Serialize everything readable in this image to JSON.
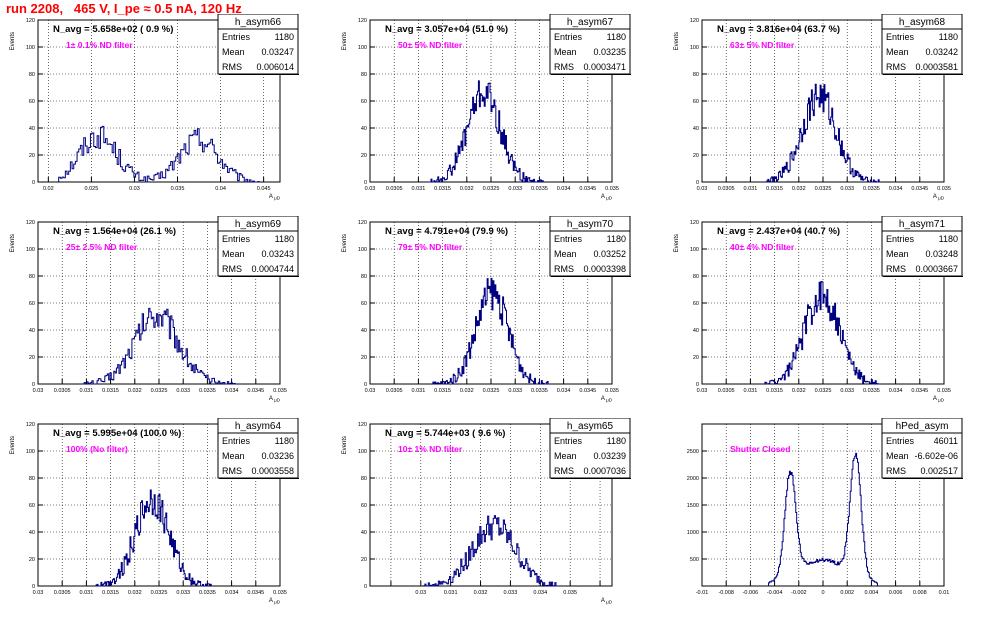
{
  "run_title": "run 2208,   465 V, I_pe ≈ 0.5 nA, 120 Hz",
  "colors": {
    "run_title": "#ff0000",
    "histogram_line": "#000080",
    "filter_label": "#ff00ff",
    "frame": "#000000",
    "grid": "#000000"
  },
  "chart_data": [
    {
      "type": "histogram",
      "title": "h_asym66",
      "ylabel": "Events",
      "xlabel": "A_{μD}",
      "xlim": [
        0.0188,
        0.0469
      ],
      "ylim": [
        0,
        120
      ],
      "xticks": [
        0.02,
        0.025,
        0.03,
        0.035,
        0.04,
        0.045
      ],
      "xtick_labels": [
        "0.02",
        "0.025",
        "0.03",
        "0.035",
        "0.04",
        "0.045"
      ],
      "yticks": [
        0,
        20,
        40,
        60,
        80,
        100,
        120
      ],
      "stats": {
        "Entries": "1180",
        "Mean": "0.03247",
        "RMS": "0.006014"
      },
      "n_avg": "N_avg = 5.658e+02 ( 0.9 %)",
      "filter": "1± 0.1% ND filter",
      "dist": [
        {
          "mu": 0.0258,
          "sigma": 0.0022,
          "amp": 34
        },
        {
          "mu": 0.0375,
          "sigma": 0.0022,
          "amp": 32
        }
      ],
      "range": [
        0.0212,
        0.0445
      ],
      "bins": 120
    },
    {
      "type": "histogram",
      "title": "h_asym67",
      "ylabel": "Events",
      "xlabel": "A_{μD}",
      "xlim": [
        0.03,
        0.035
      ],
      "ylim": [
        0,
        120
      ],
      "xticks": [
        0.03,
        0.0305,
        0.031,
        0.0315,
        0.032,
        0.0325,
        0.033,
        0.0335,
        0.034,
        0.0345,
        0.035
      ],
      "xtick_labels": [
        "0.03",
        "0.0305",
        "0.031",
        "0.0315",
        "0.032",
        "0.0325",
        "0.033",
        "0.0335",
        "0.034",
        "0.0345",
        "0.035"
      ],
      "yticks": [
        0,
        20,
        40,
        60,
        80,
        100,
        120
      ],
      "stats": {
        "Entries": "1180",
        "Mean": "0.03235",
        "RMS": "0.0003471"
      },
      "n_avg": "N_avg = 3.057e+04 (51.0 %)",
      "filter": "50± 5% ND filter",
      "dist": [
        {
          "mu": 0.03235,
          "sigma": 0.00034,
          "amp": 66
        }
      ],
      "range": [
        0.0312,
        0.0336
      ],
      "bins": 120
    },
    {
      "type": "histogram",
      "title": "h_asym68",
      "ylabel": "Events",
      "xlabel": "A_{μD}",
      "xlim": [
        0.03,
        0.035
      ],
      "ylim": [
        0,
        120
      ],
      "xticks": [
        0.03,
        0.0305,
        0.031,
        0.0315,
        0.032,
        0.0325,
        0.033,
        0.0335,
        0.034,
        0.0345,
        0.035
      ],
      "xtick_labels": [
        "0.03",
        "0.0305",
        "0.031",
        "0.0315",
        "0.032",
        "0.0325",
        "0.033",
        "0.0335",
        "0.034",
        "0.0345",
        "0.035"
      ],
      "yticks": [
        0,
        20,
        40,
        60,
        80,
        100,
        120
      ],
      "stats": {
        "Entries": "1180",
        "Mean": "0.03242",
        "RMS": "0.0003581"
      },
      "n_avg": "N_avg = 3.816e+04 (63.7 %)",
      "filter": "63± 5% ND filter",
      "dist": [
        {
          "mu": 0.03242,
          "sigma": 0.00035,
          "amp": 64
        }
      ],
      "range": [
        0.0313,
        0.0337
      ],
      "bins": 120
    },
    {
      "type": "histogram",
      "title": "h_asym69",
      "ylabel": "Events",
      "xlabel": "A_{μD}",
      "xlim": [
        0.03,
        0.035
      ],
      "ylim": [
        0,
        120
      ],
      "xticks": [
        0.03,
        0.0305,
        0.031,
        0.0315,
        0.032,
        0.0325,
        0.033,
        0.0335,
        0.034,
        0.0345,
        0.035
      ],
      "xtick_labels": [
        "0.03",
        "0.0305",
        "0.031",
        "0.0315",
        "0.032",
        "0.0325",
        "0.033",
        "0.0335",
        "0.034",
        "0.0345",
        "0.035"
      ],
      "yticks": [
        0,
        20,
        40,
        60,
        80,
        100,
        120
      ],
      "stats": {
        "Entries": "1180",
        "Mean": "0.03243",
        "RMS": "0.0004744"
      },
      "n_avg": "N_avg = 1.564e+04 (26.1 %)",
      "filter": "25± 2.5% ND filter",
      "dist": [
        {
          "mu": 0.03245,
          "sigma": 0.00045,
          "amp": 52
        }
      ],
      "range": [
        0.0309,
        0.0341
      ],
      "bins": 120
    },
    {
      "type": "histogram",
      "title": "h_asym70",
      "ylabel": "Events",
      "xlabel": "A_{μD}",
      "xlim": [
        0.03,
        0.035
      ],
      "ylim": [
        0,
        120
      ],
      "xticks": [
        0.03,
        0.0305,
        0.031,
        0.0315,
        0.032,
        0.0325,
        0.033,
        0.0335,
        0.034,
        0.0345,
        0.035
      ],
      "xtick_labels": [
        "0.03",
        "0.0305",
        "0.031",
        "0.0315",
        "0.032",
        "0.0325",
        "0.033",
        "0.0335",
        "0.034",
        "0.0345",
        "0.035"
      ],
      "yticks": [
        0,
        20,
        40,
        60,
        80,
        100,
        120
      ],
      "stats": {
        "Entries": "1180",
        "Mean": "0.03252",
        "RMS": "0.0003398"
      },
      "n_avg": "N_avg = 4.791e+04 (79.9 %)",
      "filter": "79± 5% ND filter",
      "dist": [
        {
          "mu": 0.03252,
          "sigma": 0.00033,
          "amp": 68
        }
      ],
      "range": [
        0.0313,
        0.0337
      ],
      "bins": 120
    },
    {
      "type": "histogram",
      "title": "h_asym71",
      "ylabel": "Events",
      "xlabel": "A_{μD}",
      "xlim": [
        0.03,
        0.035
      ],
      "ylim": [
        0,
        120
      ],
      "xticks": [
        0.03,
        0.0305,
        0.031,
        0.0315,
        0.032,
        0.0325,
        0.033,
        0.0335,
        0.034,
        0.0345,
        0.035
      ],
      "xtick_labels": [
        "0.03",
        "0.0305",
        "0.031",
        "0.0315",
        "0.032",
        "0.0325",
        "0.033",
        "0.0335",
        "0.034",
        "0.0345",
        "0.035"
      ],
      "yticks": [
        0,
        20,
        40,
        60,
        80,
        100,
        120
      ],
      "stats": {
        "Entries": "1180",
        "Mean": "0.03248",
        "RMS": "0.0003667"
      },
      "n_avg": "N_avg = 2.437e+04 (40.7 %)",
      "filter": "40± 4% ND filter",
      "dist": [
        {
          "mu": 0.03248,
          "sigma": 0.00036,
          "amp": 66
        }
      ],
      "range": [
        0.0313,
        0.0337
      ],
      "bins": 120
    },
    {
      "type": "histogram",
      "title": "h_asym64",
      "ylabel": "Events",
      "xlabel": "A_{μD}",
      "xlim": [
        0.03,
        0.035
      ],
      "ylim": [
        0,
        120
      ],
      "xticks": [
        0.03,
        0.0305,
        0.031,
        0.0315,
        0.032,
        0.0325,
        0.033,
        0.0335,
        0.034,
        0.0345,
        0.035
      ],
      "xtick_labels": [
        "0.03",
        "0.0305",
        "0.031",
        "0.0315",
        "0.032",
        "0.0325",
        "0.033",
        "0.0335",
        "0.034",
        "0.0345",
        "0.035"
      ],
      "yticks": [
        0,
        20,
        40,
        60,
        80,
        100,
        120
      ],
      "stats": {
        "Entries": "1180",
        "Mean": "0.03236",
        "RMS": "0.0003558"
      },
      "n_avg": "N_avg = 5.995e+04 (100.0 %)",
      "filter": "100% (No filter)",
      "dist": [
        {
          "mu": 0.03236,
          "sigma": 0.00035,
          "amp": 64
        }
      ],
      "range": [
        0.0312,
        0.0336
      ],
      "bins": 120
    },
    {
      "type": "histogram",
      "title": "h_asym65",
      "ylabel": "Events",
      "xlabel": "A_{μD}",
      "xlim": [
        0.0283,
        0.0364
      ],
      "ylim": [
        0,
        120
      ],
      "xticks": [
        0.029,
        0.03,
        0.031,
        0.032,
        0.033,
        0.034,
        0.035,
        0.036
      ],
      "xtick_labels": [
        "",
        "0.03",
        "0.031",
        "0.032",
        "0.033",
        "0.034",
        "0.035",
        ""
      ],
      "yticks": [
        0,
        20,
        40,
        60,
        80,
        100,
        120
      ],
      "stats": {
        "Entries": "1180",
        "Mean": "0.03239",
        "RMS": "0.0007036"
      },
      "n_avg": "N_avg = 5.744e+03 ( 9.6 %)",
      "filter": "10± 1% ND filter",
      "dist": [
        {
          "mu": 0.03245,
          "sigma": 0.00072,
          "amp": 44
        }
      ],
      "range": [
        0.0301,
        0.0346
      ],
      "bins": 120
    },
    {
      "type": "histogram",
      "title": "hPed_asym",
      "ylabel": "",
      "xlabel": "",
      "xlim": [
        -0.01,
        0.01
      ],
      "ylim": [
        0,
        3000
      ],
      "xticks": [
        -0.01,
        -0.008,
        -0.006,
        -0.004,
        -0.002,
        0,
        0.002,
        0.004,
        0.006,
        0.008,
        0.01
      ],
      "xtick_labels": [
        "-0.01",
        "-0.008",
        "-0.006",
        "-0.004",
        "-0.002",
        "0",
        "0.002",
        "0.004",
        "0.006",
        "0.008",
        "0.01"
      ],
      "yticks": [
        0,
        500,
        1000,
        1500,
        2000,
        2500
      ],
      "ytick_labels": [
        "",
        "500",
        "1000",
        "1500",
        "2000",
        "2500"
      ],
      "stats": {
        "Entries": "46011",
        "Mean": "-6.602e-06",
        "RMS": "0.002517"
      },
      "n_avg": "",
      "filter": "Shutter Closed",
      "dist": [
        {
          "mu": -0.0027,
          "sigma": 0.00045,
          "amp": 1900
        },
        {
          "mu": 0.0027,
          "sigma": 0.00045,
          "amp": 2250
        },
        {
          "mu": 0,
          "sigma": 0.0022,
          "amp": 480
        }
      ],
      "range": [
        -0.0045,
        0.0045
      ],
      "bins": 120
    }
  ]
}
